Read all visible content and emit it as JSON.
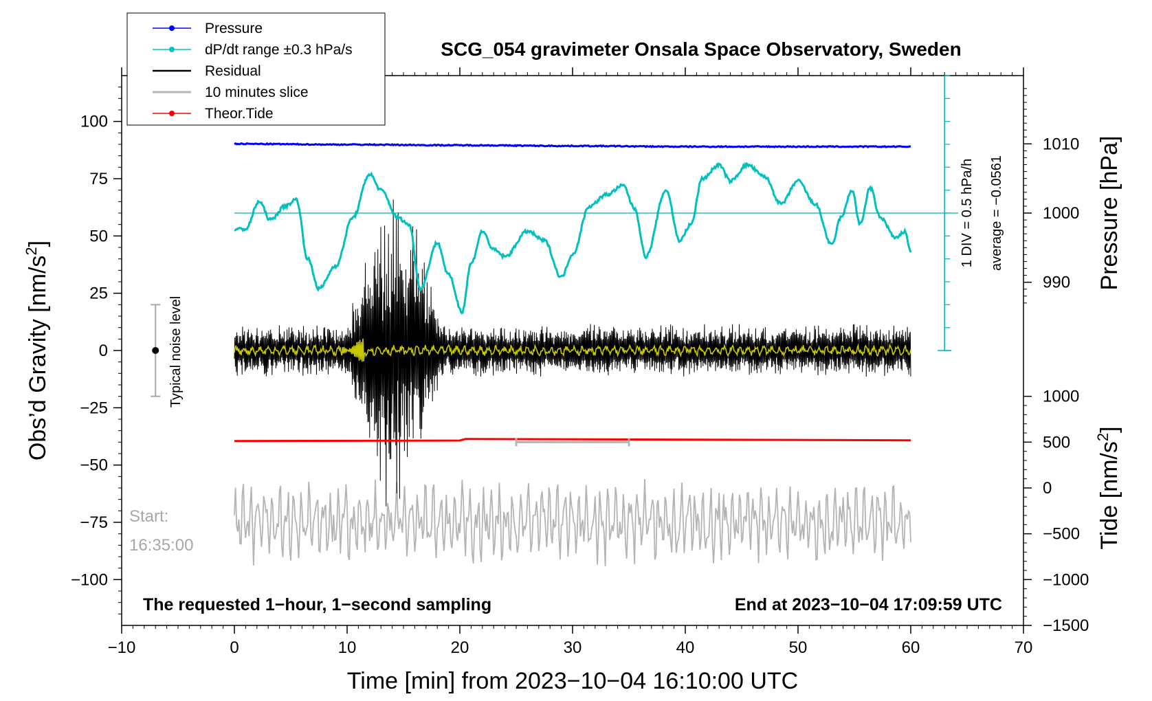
{
  "chart_data": {
    "type": "line",
    "title": "SCG_054 gravimeter Onsala Space Observatory, Sweden",
    "xlabel": "Time [min] from 2023−10−04 16:10:00 UTC",
    "xlim": [
      -10,
      70
    ],
    "xticks": [
      -10,
      0,
      10,
      20,
      30,
      40,
      50,
      60,
      70
    ],
    "xtick_labels": [
      "−10",
      "0",
      "10",
      "20",
      "30",
      "40",
      "50",
      "60",
      "70"
    ],
    "y_left": {
      "label_main": "Obs’d Gravity [nm/s",
      "label_sup": "2",
      "label_end": "]",
      "ylim": [
        -120,
        120
      ],
      "ticks": [
        -100,
        -75,
        -50,
        -25,
        0,
        25,
        50,
        75,
        100
      ],
      "tick_labels": [
        "−100",
        "−75",
        "−50",
        "−25",
        "0",
        "25",
        "50",
        "75",
        "100"
      ]
    },
    "y_pressure": {
      "label": "Pressure [hPa]",
      "ticks": [
        990,
        1000,
        1010
      ],
      "tick_labels": [
        "990",
        "1000",
        "1010"
      ]
    },
    "y_tide": {
      "label_main": "Tide [nm/s",
      "label_sup": "2",
      "label_end": "]",
      "ticks": [
        -1500,
        -1000,
        -500,
        0,
        500,
        1000
      ],
      "tick_labels": [
        "−1500",
        "−1000",
        "−500",
        "0",
        "500",
        "1000"
      ]
    },
    "legend": [
      {
        "label": "Pressure",
        "color": "#0000ff",
        "marker": true
      },
      {
        "label": "dP/dt range ±0.3 hPa/s",
        "color": "#00c0c0",
        "marker": true
      },
      {
        "label": "Residual",
        "color": "#000000",
        "marker": false
      },
      {
        "label": "10 minutes slice",
        "color": "#b4b4b4",
        "marker": false
      },
      {
        "label": "Theor.Tide",
        "color": "#ff0000",
        "marker": true
      }
    ],
    "series": [
      {
        "name": "Pressure",
        "color": "#0000ff",
        "x": [
          0,
          10,
          20,
          30,
          40,
          50,
          60
        ],
        "values": [
          1010.0,
          1009.9,
          1009.8,
          1009.7,
          1009.6,
          1009.6,
          1009.6
        ]
      },
      {
        "name": "dP/dt",
        "color": "#00c0c0",
        "x": [
          0,
          1,
          2.2,
          3.2,
          4.5,
          5.5,
          6.5,
          7.5,
          9,
          10.5,
          12,
          13,
          14.5,
          15.5,
          16.5,
          18,
          19,
          20.2,
          21,
          22,
          23,
          24,
          26,
          27.5,
          29,
          30,
          31.5,
          33,
          34.5,
          35.5,
          36.5,
          38.3,
          39.5,
          40.5,
          41.5,
          43,
          44,
          45.5,
          47,
          48.5,
          50,
          51.5,
          53,
          53.8,
          54.8,
          55.5,
          56.4,
          57.3,
          58.7,
          59.5,
          60
        ],
        "values": [
          53,
          53,
          65,
          57,
          63,
          66,
          40,
          27,
          37,
          58,
          77,
          70,
          58,
          55,
          27,
          47,
          33,
          17,
          38,
          52,
          44,
          41,
          52,
          48,
          32,
          42,
          63,
          68,
          72,
          62,
          41,
          70,
          48,
          55,
          75,
          81,
          74,
          81,
          76,
          64,
          74,
          64,
          46,
          58,
          70,
          55,
          71,
          58,
          49,
          52,
          43
        ]
      },
      {
        "name": "Residual",
        "color": "#000000",
        "x": [
          0,
          60
        ],
        "noise_amplitude": 12,
        "event_window": [
          10,
          20.5
        ],
        "event_peak": 60
      },
      {
        "name": "Residual filtered",
        "color": "#c8c800",
        "x": [
          0,
          60
        ],
        "noise_amplitude": 2,
        "burst_window": [
          9.5,
          11.5
        ],
        "burst_amplitude": 8
      },
      {
        "name": "Theor.Tide",
        "color": "#ff0000",
        "x": [
          0,
          20,
          20.5,
          60
        ],
        "values": [
          -39.5,
          -39.3,
          -38.6,
          -39.2
        ]
      },
      {
        "name": "10 minutes slice",
        "color": "#b4b4b4",
        "x": [
          0,
          60
        ],
        "baseline": -75,
        "amplitude": 14
      }
    ],
    "tide_marker": {
      "x_start": 25,
      "x_end": 35,
      "y": -40
    },
    "pressure_scale": {
      "label_1": "1 DIV = 0.5 hPa/h",
      "label_2": "average = −0.0561",
      "x": 63,
      "baseline_y": 60,
      "top": 120,
      "bottom": 0
    },
    "noise_bar": {
      "label": "Typical noise level",
      "x": -7,
      "center": 0,
      "half_range": 20
    },
    "start_label_1": "Start:",
    "start_label_2": "16:35:00",
    "note_left": "The requested 1−hour, 1−second sampling",
    "note_right": "End at 2023−10−04 17:09:59 UTC"
  }
}
